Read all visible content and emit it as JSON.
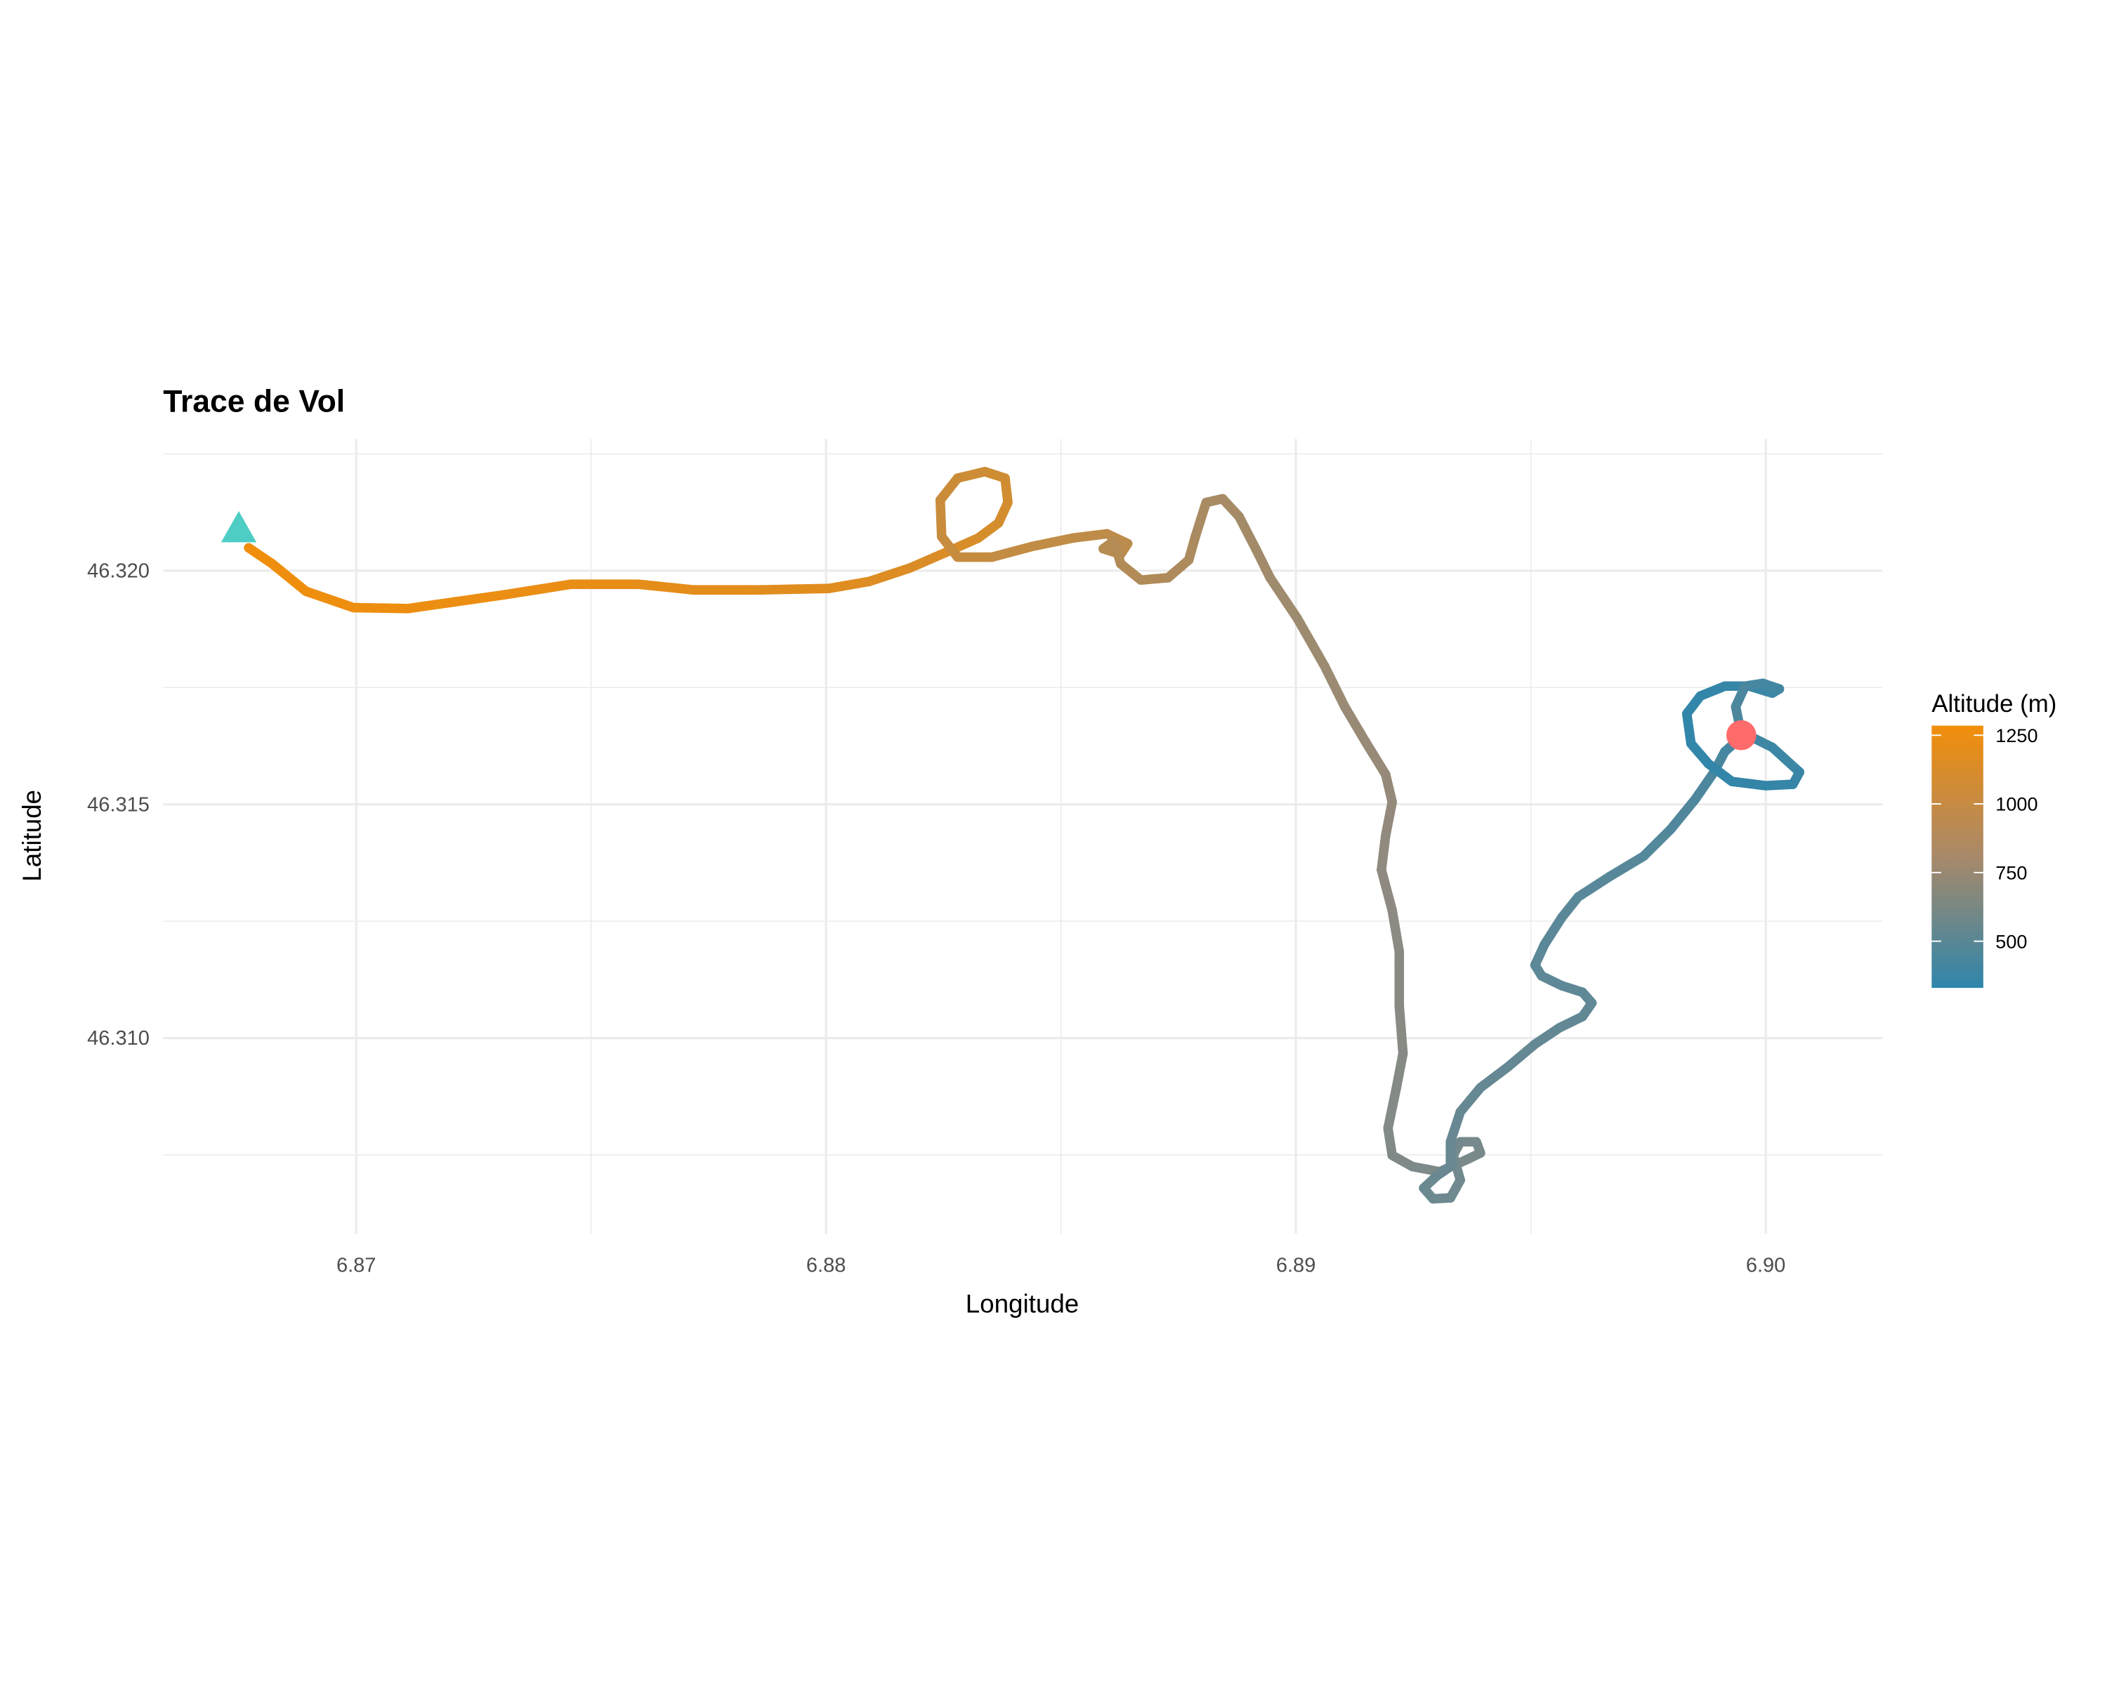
{
  "chart_data": {
    "type": "line",
    "title": "Trace de Vol",
    "xlabel": "Longitude",
    "ylabel": "Latitude",
    "xlim": [
      6.86589,
      6.90249
    ],
    "ylim": [
      46.30581,
      46.32282
    ],
    "x_ticks": [
      6.87,
      6.88,
      6.89,
      6.9
    ],
    "x_tick_labels": [
      "6.87",
      "6.88",
      "6.89",
      "6.90"
    ],
    "y_ticks": [
      46.31,
      46.315,
      46.32
    ],
    "y_tick_labels": [
      "46.310",
      "46.315",
      "46.320"
    ],
    "grid": true,
    "legend": {
      "title": "Altitude (m)",
      "placement": "right",
      "range": [
        330,
        1285
      ],
      "ticks": [
        1250,
        1000,
        750,
        500
      ],
      "tick_labels": [
        "1250",
        "1000",
        "750",
        "500"
      ],
      "color_low": "#2E86AB",
      "color_mid": "#8E8A82",
      "color_high": "#F28E0A"
    },
    "start_marker": {
      "lon": 6.8675,
      "lat": 46.32087,
      "shape": "triangle",
      "color": "#4ECDC4"
    },
    "end_marker": {
      "lon": 6.89948,
      "lat": 46.31648,
      "shape": "circle",
      "color": "#FF6B6B"
    },
    "columns": [
      "lon",
      "lat",
      "altitude"
    ],
    "points": [
      [
        6.86771,
        46.32049,
        1280
      ],
      [
        6.86821,
        46.32015,
        1275
      ],
      [
        6.86893,
        46.31956,
        1270
      ],
      [
        6.86994,
        46.31921,
        1265
      ],
      [
        6.8711,
        46.31919,
        1260
      ],
      [
        6.87312,
        46.31948,
        1250
      ],
      [
        6.87457,
        46.31971,
        1240
      ],
      [
        6.87601,
        46.31971,
        1230
      ],
      [
        6.87717,
        46.31959,
        1220
      ],
      [
        6.87861,
        46.31959,
        1210
      ],
      [
        6.88006,
        46.31962,
        1200
      ],
      [
        6.88092,
        46.31977,
        1190
      ],
      [
        6.88179,
        46.32006,
        1180
      ],
      [
        6.88266,
        46.32044,
        1165
      ],
      [
        6.88324,
        46.3207,
        1155
      ],
      [
        6.88367,
        46.32102,
        1145
      ],
      [
        6.88387,
        46.32146,
        1135
      ],
      [
        6.88381,
        46.32198,
        1125
      ],
      [
        6.88338,
        46.32212,
        1115
      ],
      [
        6.8828,
        46.32198,
        1105
      ],
      [
        6.88243,
        46.32151,
        1095
      ],
      [
        6.88246,
        46.32073,
        1085
      ],
      [
        6.8828,
        46.32029,
        1075
      ],
      [
        6.88353,
        46.32029,
        1065
      ],
      [
        6.88439,
        46.32052,
        1055
      ],
      [
        6.88526,
        46.3207,
        1045
      ],
      [
        6.88598,
        46.32079,
        1035
      ],
      [
        6.88642,
        46.32058,
        1025
      ],
      [
        6.88627,
        46.32035,
        1015
      ],
      [
        6.8859,
        46.32047,
        1005
      ],
      [
        6.88613,
        46.32064,
        995
      ],
      [
        6.88627,
        46.32015,
        985
      ],
      [
        6.8867,
        46.3198,
        975
      ],
      [
        6.88728,
        46.31985,
        965
      ],
      [
        6.88772,
        46.32023,
        955
      ],
      [
        6.88786,
        46.32073,
        945
      ],
      [
        6.88809,
        46.32146,
        935
      ],
      [
        6.88844,
        46.32154,
        925
      ],
      [
        6.88879,
        46.32116,
        915
      ],
      [
        6.88916,
        46.32044,
        905
      ],
      [
        6.88945,
        46.31985,
        895
      ],
      [
        6.89003,
        46.31898,
        885
      ],
      [
        6.89061,
        46.31796,
        875
      ],
      [
        6.89104,
        46.31709,
        865
      ],
      [
        6.89147,
        46.31636,
        855
      ],
      [
        6.89191,
        46.31564,
        845
      ],
      [
        6.89205,
        46.31505,
        835
      ],
      [
        6.89191,
        46.31433,
        825
      ],
      [
        6.89182,
        46.3136,
        815
      ],
      [
        6.89205,
        46.31273,
        805
      ],
      [
        6.8922,
        46.31185,
        795
      ],
      [
        6.8922,
        46.31069,
        785
      ],
      [
        6.89228,
        46.30967,
        775
      ],
      [
        6.89214,
        46.30894,
        765
      ],
      [
        6.89196,
        46.30807,
        755
      ],
      [
        6.89205,
        46.30749,
        745
      ],
      [
        6.89248,
        46.30725,
        735
      ],
      [
        6.89306,
        46.30714,
        725
      ],
      [
        6.89364,
        46.3074,
        715
      ],
      [
        6.89393,
        46.30754,
        705
      ],
      [
        6.89384,
        46.30778,
        695
      ],
      [
        6.8935,
        46.30778,
        685
      ],
      [
        6.89335,
        46.30749,
        675
      ],
      [
        6.8935,
        46.30696,
        665
      ],
      [
        6.89329,
        46.30658,
        655
      ],
      [
        6.89292,
        46.30656,
        645
      ],
      [
        6.89272,
        46.30679,
        635
      ],
      [
        6.893,
        46.30705,
        625
      ],
      [
        6.89329,
        46.30725,
        620
      ],
      [
        6.89329,
        46.30778,
        615
      ],
      [
        6.8935,
        46.30842,
        610
      ],
      [
        6.89393,
        46.30894,
        605
      ],
      [
        6.89451,
        46.30938,
        600
      ],
      [
        6.89509,
        46.30987,
        595
      ],
      [
        6.89561,
        46.31022,
        590
      ],
      [
        6.8961,
        46.31046,
        585
      ],
      [
        6.8963,
        46.31075,
        580
      ],
      [
        6.8961,
        46.31098,
        575
      ],
      [
        6.89566,
        46.31112,
        570
      ],
      [
        6.89523,
        46.31133,
        565
      ],
      [
        6.89509,
        46.31156,
        560
      ],
      [
        6.89529,
        46.312,
        555
      ],
      [
        6.89566,
        46.31258,
        550
      ],
      [
        6.89601,
        46.31302,
        545
      ],
      [
        6.89667,
        46.31345,
        535
      ],
      [
        6.8974,
        46.31389,
        525
      ],
      [
        6.89798,
        46.31447,
        510
      ],
      [
        6.8985,
        46.31511,
        495
      ],
      [
        6.8989,
        46.31569,
        475
      ],
      [
        6.89913,
        46.31613,
        455
      ],
      [
        6.89956,
        46.31651,
        430
      ],
      [
        6.90014,
        46.31622,
        410
      ],
      [
        6.90072,
        46.31569,
        390
      ],
      [
        6.90058,
        46.31543,
        375
      ],
      [
        6.9,
        46.3154,
        365
      ],
      [
        6.89928,
        46.31549,
        355
      ],
      [
        6.89878,
        46.31587,
        350
      ],
      [
        6.89841,
        46.3163,
        345
      ],
      [
        6.89832,
        46.31694,
        345
      ],
      [
        6.89861,
        46.31732,
        350
      ],
      [
        6.89913,
        46.31753,
        360
      ],
      [
        6.89965,
        46.31753,
        380
      ],
      [
        6.90014,
        46.31738,
        400
      ],
      [
        6.90029,
        46.31747,
        420
      ],
      [
        6.89994,
        46.31759,
        440
      ],
      [
        6.89956,
        46.31753,
        460
      ],
      [
        6.89936,
        46.31709,
        480
      ],
      [
        6.89948,
        46.31651,
        490
      ]
    ]
  }
}
